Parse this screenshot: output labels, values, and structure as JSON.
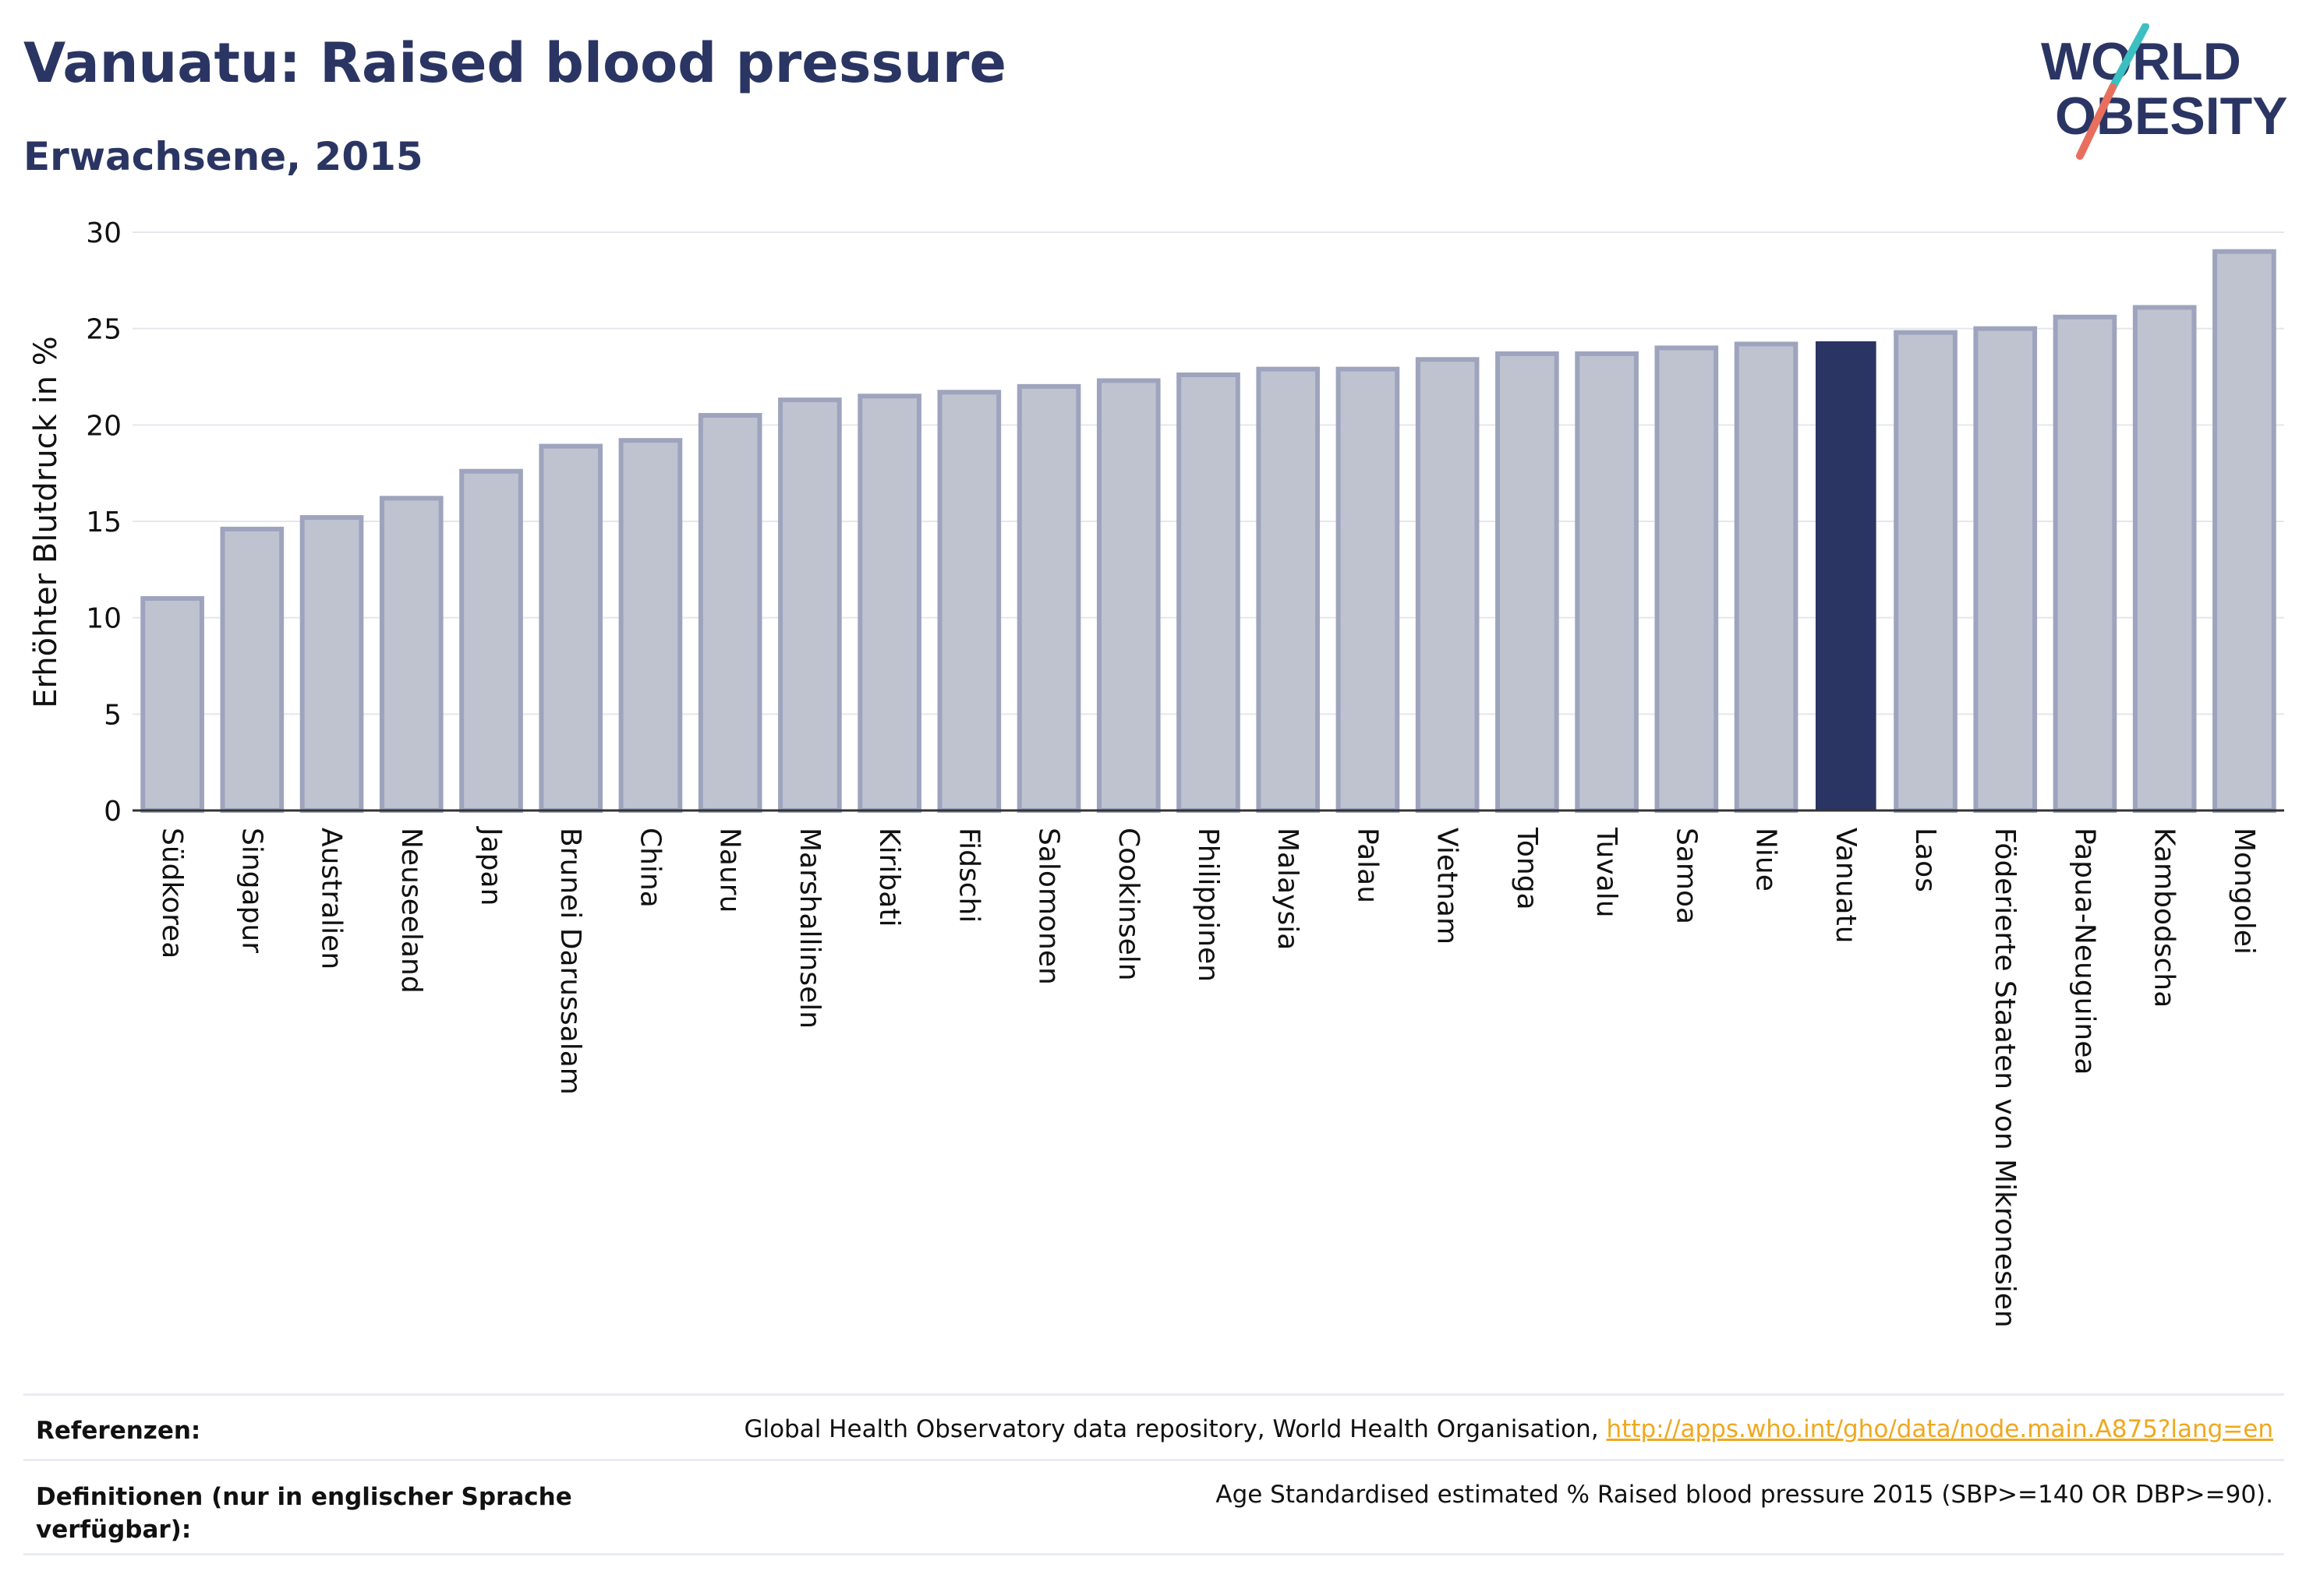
{
  "header": {
    "title": "Vanuatu: Raised blood pressure",
    "subtitle": "Erwachsene, 2015"
  },
  "logo": {
    "line1": "WORLD",
    "line2": "OBESITY"
  },
  "colors": {
    "bar": "#bfc3d0",
    "bar_stroke": "#9ea4bd",
    "highlight": "#2a3563",
    "text": "#2a3563",
    "grid": "#e5e7ee",
    "logo_teal": "#3cbfc0",
    "logo_coral": "#e86f5e",
    "link": "#f0a81e"
  },
  "chart_data": {
    "type": "bar",
    "ylabel": "Erhöhter Blutdruck in %",
    "ylim": [
      0,
      30
    ],
    "yticks": [
      0,
      5,
      10,
      15,
      20,
      25,
      30
    ],
    "grid": true,
    "highlight": "Vanuatu",
    "categories": [
      "Südkorea",
      "Singapur",
      "Australien",
      "Neuseeland",
      "Japan",
      "Brunei Darussalam",
      "China",
      "Nauru",
      "Marshallinseln",
      "Kiribati",
      "Fidschi",
      "Salomonen",
      "Cookinseln",
      "Philippinen",
      "Malaysia",
      "Palau",
      "Vietnam",
      "Tonga",
      "Tuvalu",
      "Samoa",
      "Niue",
      "Vanuatu",
      "Laos",
      "Föderierte Staaten von Mikronesien",
      "Papua-Neuguinea",
      "Kambodscha",
      "Mongolei"
    ],
    "values": [
      11.0,
      14.6,
      15.2,
      16.2,
      17.6,
      18.9,
      19.2,
      20.5,
      21.3,
      21.5,
      21.7,
      22.0,
      22.3,
      22.6,
      22.9,
      22.9,
      23.4,
      23.7,
      23.7,
      24.0,
      24.2,
      24.3,
      24.8,
      25.0,
      25.6,
      26.1,
      29.0
    ]
  },
  "footer": {
    "references_label": "Referenzen:",
    "references_text": "Global Health Observatory data repository, World Health Organisation, ",
    "references_link": "http://apps.who.int/gho/data/node.main.A875?lang=en",
    "definitions_label_line1": "Definitionen (nur in englischer Sprache",
    "definitions_label_line2": "verfügbar):",
    "definitions_text": "Age Standardised estimated % Raised blood pressure 2015 (SBP>=140 OR DBP>=90)."
  }
}
